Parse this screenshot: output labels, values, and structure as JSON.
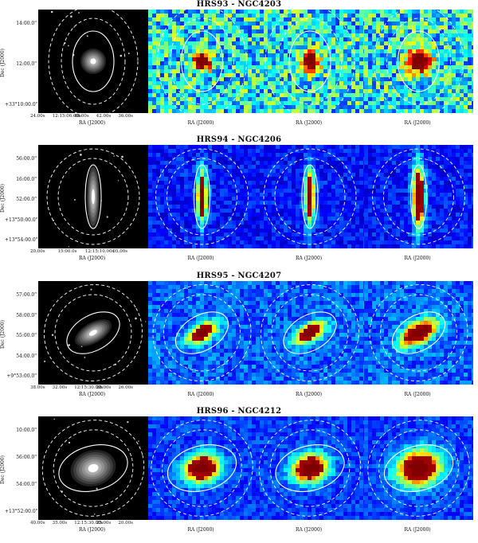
{
  "rows": [
    {
      "title": "HRS93 - NGC4203",
      "y_label": "Dec (J2000)",
      "y_ticks": [
        "14:00.0\"",
        "12:00.0\"",
        "+33°10:00.0\""
      ],
      "x_ticks": [
        "24.00s",
        "12:15:06.00s",
        "48.00s",
        "42.00s",
        "36.00s"
      ],
      "x_labels": [
        "RA (J2000)",
        "RA (J2000)",
        "RA (J2000)",
        "RA (J2000)"
      ],
      "morphology": "compact"
    },
    {
      "title": "HRS94 - NGC4206",
      "y_label": "Dec (J2000)",
      "y_ticks": [
        "56:00.0\"",
        "16:00.0\"",
        "52:00.0\"",
        "+13°50:00.0\"",
        "+13°54:00.0\""
      ],
      "x_ticks": [
        "20.00s",
        "15:00.0s",
        "12:15:10.00s",
        "05.00s"
      ],
      "x_labels": [
        "RA (J2000)",
        "RA (J2000)",
        "RA (J2000)",
        "RA (J2000)"
      ],
      "morphology": "edge-on"
    },
    {
      "title": "HRS95 - NGC4207",
      "y_label": "Dec (J2000)",
      "y_ticks": [
        "57:00.0\"",
        "58:00.0\"",
        "55:00.0\"",
        "54:00.0\"",
        "+9°53:00.0\""
      ],
      "x_ticks": [
        "38.00s",
        "32.00s",
        "12:15:30.00s",
        "28.00s",
        "26.00s"
      ],
      "x_labels": [
        "RA (J2000)",
        "RA (J2000)",
        "RA (J2000)",
        "RA (J2000)"
      ],
      "morphology": "inclined"
    },
    {
      "title": "HRS96 - NGC4212",
      "y_label": "Dec (J2000)",
      "y_ticks": [
        "10:00.0\"",
        "56:00.0\"",
        "54:00.0\"",
        "+13°52:00.0\""
      ],
      "x_ticks": [
        "40.00s",
        "35.00s",
        "12:15:30.00s",
        "25.00s",
        "20.00s"
      ],
      "x_labels": [
        "RA (J2000)",
        "RA (J2000)",
        "RA (J2000)",
        "RA (J2000)"
      ],
      "morphology": "disk"
    }
  ],
  "colors": {
    "map_background": "#1f5fd6",
    "core": "#8b0000",
    "optical_bg": "#000000",
    "contour": "#ffffff"
  }
}
